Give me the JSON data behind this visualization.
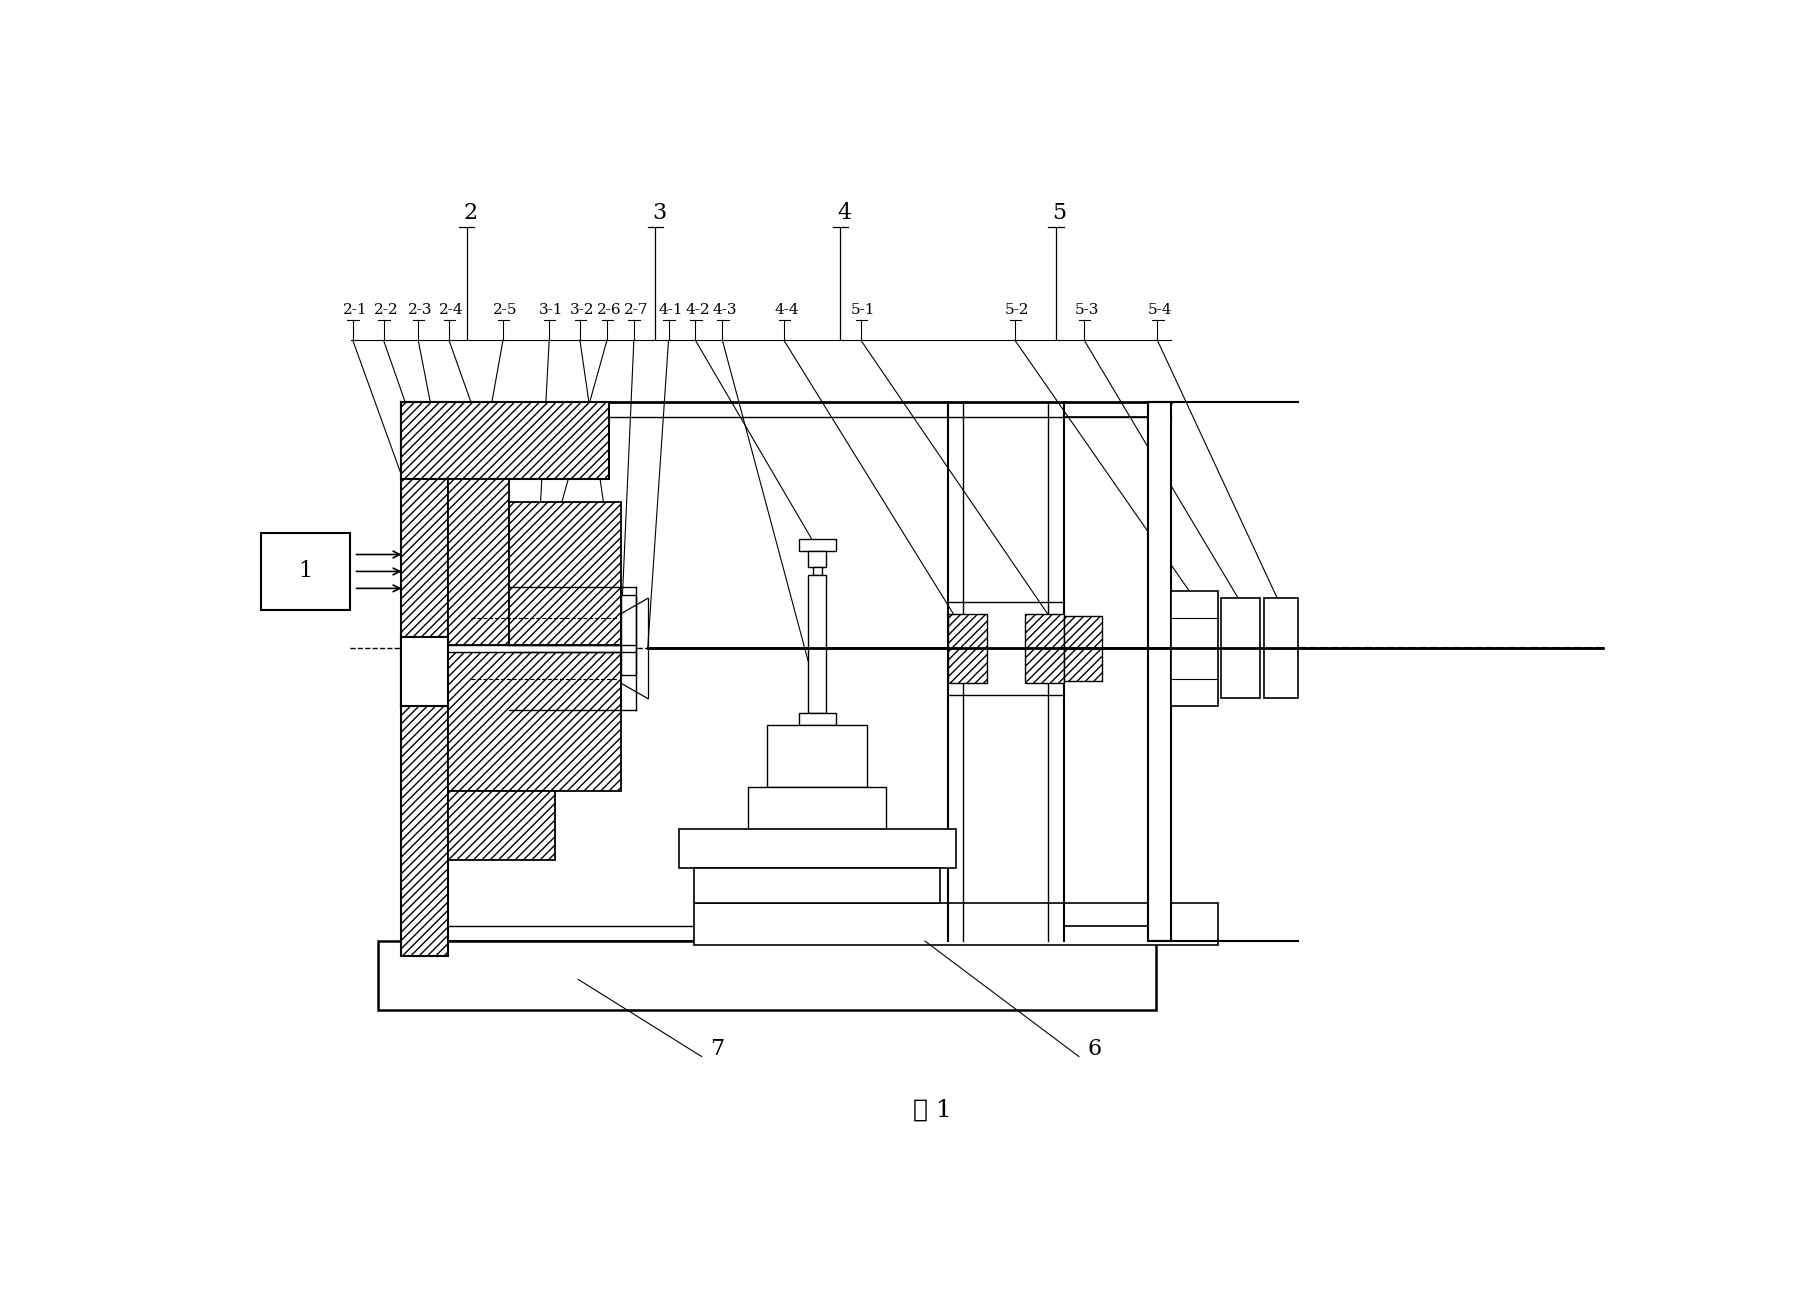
{
  "bg": "#ffffff",
  "caption": "图 1",
  "sub_labels": [
    "2-1",
    "2-2",
    "2-3",
    "2-4",
    "2-5",
    "3-1",
    "3-2",
    "2-6",
    "2-7",
    "4-1",
    "4-2",
    "4-3",
    "4-4",
    "5-1",
    "5-2",
    "5-3",
    "5-4"
  ],
  "main_labels": [
    "2",
    "3",
    "4",
    "5"
  ],
  "figsize": [
    18.19,
    12.97
  ],
  "dpi": 100
}
